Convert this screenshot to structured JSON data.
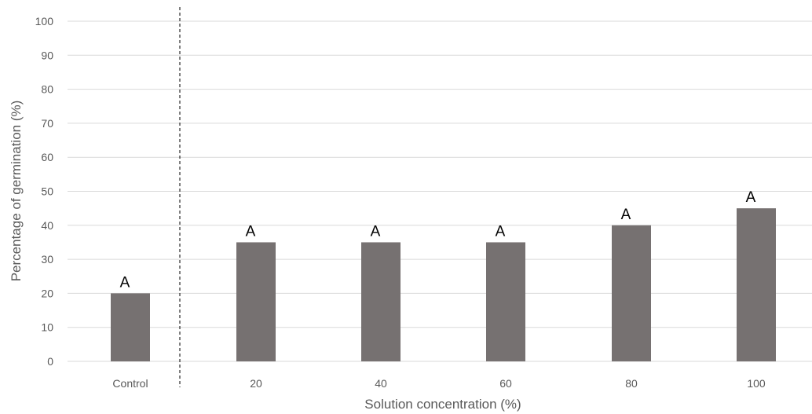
{
  "chart_data": {
    "type": "bar",
    "categories": [
      "Control",
      "20",
      "40",
      "60",
      "80",
      "100"
    ],
    "values": [
      20,
      35,
      35,
      35,
      40,
      45
    ],
    "data_labels": [
      "A",
      "A",
      "A",
      "A",
      "A",
      "A"
    ],
    "xlabel": "Solution concentration (%)",
    "ylabel": "Percentage of germination (%)",
    "ylim": [
      0,
      100
    ],
    "yticks": [
      0,
      10,
      20,
      30,
      40,
      50,
      60,
      70,
      80,
      90,
      100
    ],
    "grid": true,
    "separator_after_category": "Control",
    "bar_color": "#767171",
    "grid_color": "#d9d9d9"
  }
}
